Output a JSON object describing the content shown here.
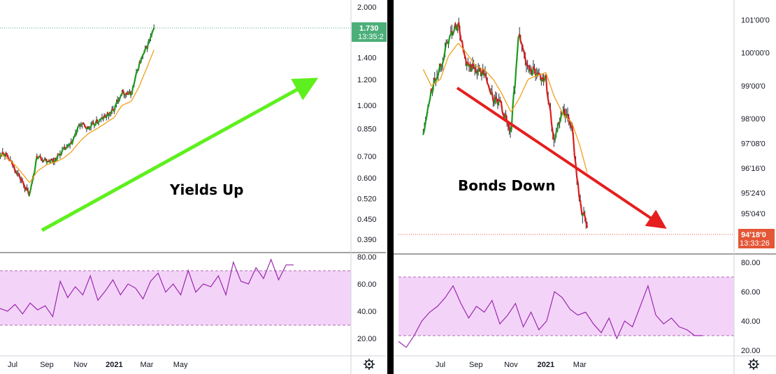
{
  "colors": {
    "up": "#1e9a1e",
    "down": "#d81e1e",
    "ma": "#f0a01a",
    "rsi": "#9c27b0",
    "rsi_band": "#f3d4f8",
    "arrow_up": "#5ef01e",
    "arrow_down": "#e61e1e",
    "yield_tag": "#4caf7a",
    "bond_tag": "#e35636",
    "divider": "#000000"
  },
  "chart_data": [
    {
      "type": "line",
      "panel": "left",
      "annotation": "Yields Up",
      "last_value": "1.730",
      "last_time": "13:35:2",
      "y_ticks": [
        "2.000",
        "1.730",
        "1.400",
        "1.200",
        "1.000",
        "0.850",
        "0.700",
        "0.600",
        "0.520",
        "0.450",
        "0.390"
      ],
      "y_scale": "log",
      "ylim": [
        0.39,
        2.0
      ],
      "x_ticks": [
        "Jul",
        "Sep",
        "Nov",
        "2021",
        "Mar",
        "May"
      ],
      "x": [
        "2020-06-01",
        "2020-06-15",
        "2020-07-01",
        "2020-07-15",
        "2020-08-01",
        "2020-08-15",
        "2020-09-01",
        "2020-09-15",
        "2020-10-01",
        "2020-10-15",
        "2020-11-01",
        "2020-11-15",
        "2020-12-01",
        "2020-12-15",
        "2021-01-01",
        "2021-01-15",
        "2021-02-01",
        "2021-02-15",
        "2021-03-01",
        "2021-03-15"
      ],
      "series": [
        {
          "values": [
            0.7,
            0.72,
            0.66,
            0.6,
            0.53,
            0.7,
            0.68,
            0.68,
            0.73,
            0.76,
            0.88,
            0.85,
            0.89,
            0.92,
            0.97,
            1.1,
            1.08,
            1.33,
            1.5,
            1.72
          ]
        },
        {
          "values": [
            0.72,
            0.7,
            0.67,
            0.63,
            0.58,
            0.63,
            0.66,
            0.67,
            0.69,
            0.72,
            0.78,
            0.82,
            0.85,
            0.88,
            0.92,
            1.0,
            1.03,
            1.14,
            1.3,
            1.49
          ]
        }
      ],
      "rsi": {
        "y_ticks": [
          "80.00",
          "60.00",
          "40.00",
          "20.00"
        ],
        "band": [
          30,
          70
        ],
        "values": [
          42,
          40,
          45,
          38,
          46,
          41,
          44,
          36,
          62,
          50,
          58,
          52,
          66,
          48,
          55,
          63,
          52,
          60,
          57,
          49,
          62,
          68,
          54,
          60,
          52,
          70,
          54,
          60,
          58,
          66,
          52,
          76,
          62,
          60,
          72,
          64,
          78,
          63,
          74,
          74
        ]
      }
    },
    {
      "type": "line",
      "panel": "right",
      "annotation": "Bonds Down",
      "last_value": "94'18'0",
      "last_time": "13:33:26",
      "y_ticks": [
        "101'00'0",
        "100'00'0",
        "99'00'0",
        "98'00'0",
        "97'08'0",
        "96'16'0",
        "95'24'0",
        "95'04'0"
      ],
      "y_scale": "linear",
      "ylim": [
        94.4,
        101.4
      ],
      "x_ticks": [
        "Jul",
        "Sep",
        "Nov",
        "2021",
        "Mar"
      ],
      "x": [
        "2020-06-01",
        "2020-06-15",
        "2020-07-01",
        "2020-07-15",
        "2020-08-01",
        "2020-08-15",
        "2020-09-01",
        "2020-09-15",
        "2020-10-01",
        "2020-10-15",
        "2020-11-01",
        "2020-11-15",
        "2020-12-01",
        "2020-12-15",
        "2021-01-01",
        "2021-01-15",
        "2021-02-01",
        "2021-02-15",
        "2021-03-01",
        "2021-03-15"
      ],
      "series": [
        {
          "values": [
            97.5,
            98.8,
            99.6,
            100.4,
            100.9,
            99.6,
            99.5,
            99.4,
            98.6,
            98.4,
            97.6,
            100.6,
            99.5,
            99.4,
            99.2,
            97.4,
            98.2,
            97.8,
            95.5,
            94.6
          ]
        },
        {
          "values": [
            99.5,
            99.0,
            99.2,
            99.9,
            100.3,
            100.0,
            99.6,
            99.5,
            99.2,
            98.8,
            98.2,
            98.6,
            99.2,
            99.3,
            99.4,
            98.7,
            98.1,
            97.9,
            97.2,
            96.3
          ]
        }
      ],
      "rsi": {
        "y_ticks": [
          "80.00",
          "60.00",
          "40.00",
          "20.00"
        ],
        "band": [
          30,
          70
        ],
        "values": [
          26,
          22,
          30,
          40,
          46,
          50,
          56,
          64,
          52,
          42,
          50,
          46,
          54,
          38,
          44,
          52,
          36,
          46,
          34,
          40,
          60,
          56,
          48,
          44,
          46,
          38,
          32,
          42,
          28,
          40,
          36,
          50,
          64,
          44,
          38,
          42,
          36,
          34,
          30,
          30
        ]
      }
    }
  ]
}
